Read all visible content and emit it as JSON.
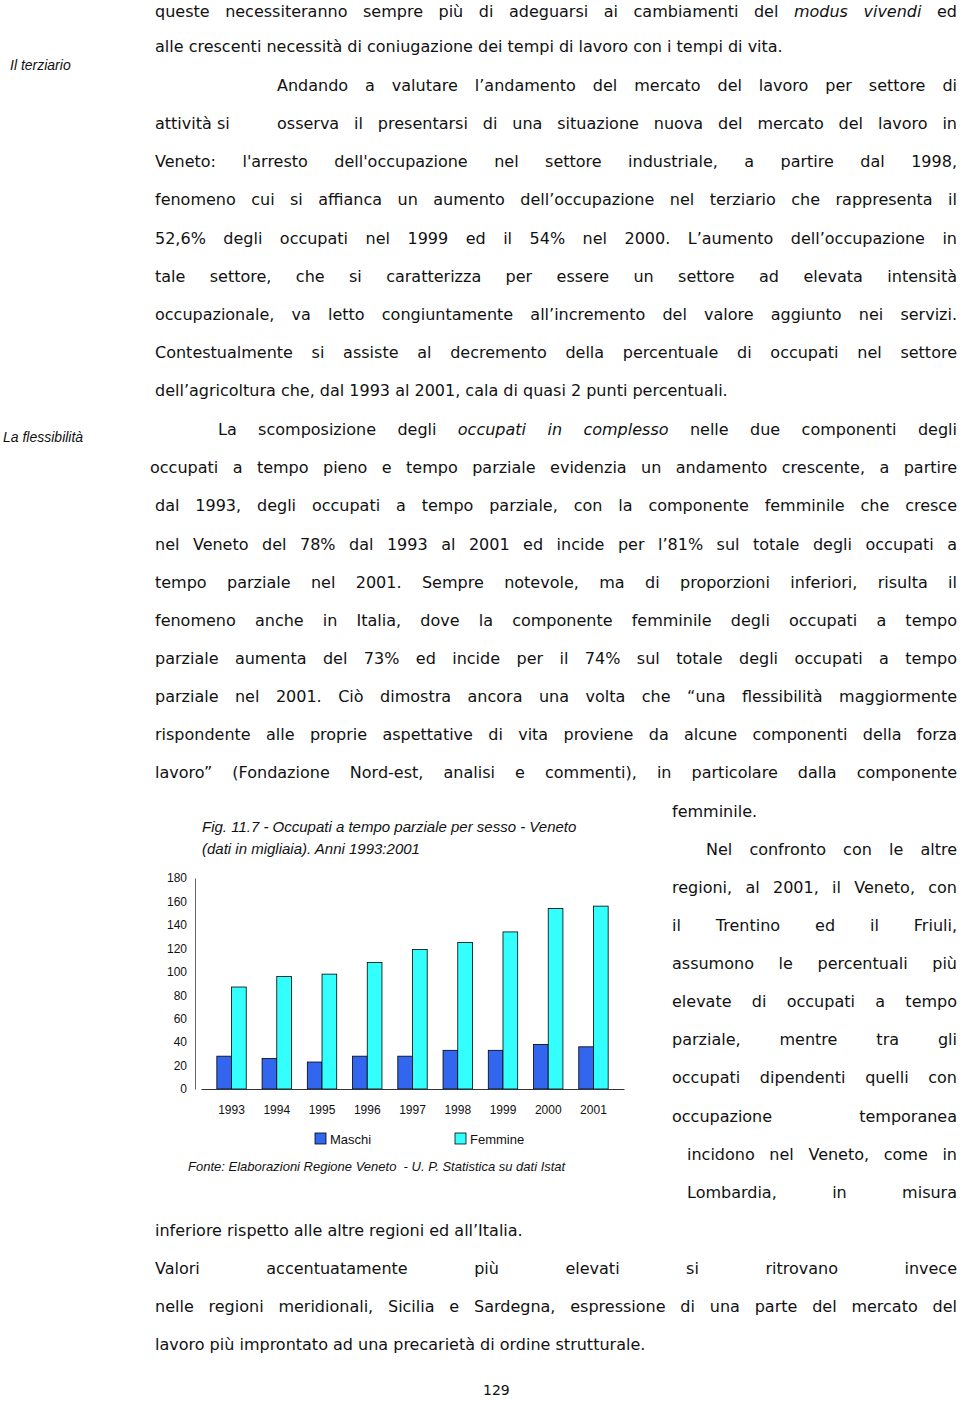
{
  "document": {
    "margin_notes": [
      "Il terziario",
      "La flessibilità"
    ],
    "lines": [
      [
        "queste necessiteranno sempre più di adeguarsi ai cambiamenti del ",
        "modus vivendi",
        " ed"
      ],
      [
        "alle crescenti necessità di coniugazione dei tempi di lavoro con i  tempi di vita."
      ],
      [
        "Andando a valutare l’andamento del mercato del lavoro per settore di"
      ],
      [
        "attività si"
      ],
      [
        "osserva il presentarsi di una situazione nuova del mercato del lavoro in"
      ],
      [
        "Veneto: l'arresto dell'occupazione nel settore industriale, a partire dal 1998,"
      ],
      [
        "fenomeno cui si affianca un aumento dell’occupazione nel terziario che rappresenta il"
      ],
      [
        "52,6% degli occupati nel  1999 ed il 54% nel 2000. L’aumento dell’occupazione in"
      ],
      [
        "tale settore, che si caratterizza per essere un settore ad elevata intensità"
      ],
      [
        "occupazionale, va letto congiuntamente all’incremento del valore aggiunto nei servizi."
      ],
      [
        "Contestualmente si assiste al decremento della percentuale di occupati nel settore"
      ],
      [
        "dell’agricoltura che, dal 1993 al 2001, cala di quasi 2 punti percentuali."
      ],
      [
        "La scomposizione degli ",
        "occupati in complesso",
        " nelle due componenti degli"
      ],
      [
        "occupati a tempo pieno e tempo parziale evidenzia un andamento crescente, a partire"
      ],
      [
        "dal 1993, degli occupati a tempo parziale, con la componente femminile che cresce"
      ],
      [
        "nel Veneto del 78% dal 1993 al 2001 ed incide per l’81% sul totale degli occupati a"
      ],
      [
        "tempo parziale nel 2001. Sempre notevole, ma di proporzioni inferiori, risulta il"
      ],
      [
        "fenomeno anche in Italia, dove la componente femminile degli occupati a tempo"
      ],
      [
        "parziale aumenta del 73% ed incide per il 74% sul totale degli occupati a tempo"
      ],
      [
        "parziale nel 2001. Ciò dimostra ancora una volta che “una flessibilità maggiormente"
      ],
      [
        "rispondente alle proprie aspettative di vita proviene da alcune componenti della forza"
      ],
      [
        "lavoro” (Fondazione Nord-est, analisi e commenti), in particolare dalla componente"
      ],
      [
        "femminile."
      ],
      [
        "Nel confronto con le altre"
      ],
      [
        "regioni, al 2001, il Veneto, con"
      ],
      [
        "il Trentino ed il Friuli,"
      ],
      [
        "assumono le percentuali più"
      ],
      [
        "elevate di occupati a tempo"
      ],
      [
        "parziale, mentre tra gli"
      ],
      [
        "occupati dipendenti quelli con"
      ],
      [
        "occupazione temporanea"
      ],
      [
        "incidono nel Veneto, come in"
      ],
      [
        "Lombardia, in misura"
      ],
      [
        "inferiore rispetto alle altre regioni ed all’Italia."
      ],
      [
        "Valori accentuatamente più elevati si ritrovano invece"
      ],
      [
        "nelle regioni meridionali, Sicilia e Sardegna, espressione di una parte del mercato del"
      ],
      [
        "lavoro più improntato ad una precarietà di ordine strutturale."
      ]
    ],
    "page_number": "129"
  },
  "chart_data": {
    "type": "bar",
    "title": "Fig. 11.7 - Occupati a tempo parziale per sesso - Veneto (dati in migliaia). Anni 1993:2001",
    "source": "Fonte: Elaborazioni Regione Veneto  - U. P. Statistica su dati Istat",
    "categories": [
      "1993",
      "1994",
      "1995",
      "1996",
      "1997",
      "1998",
      "1999",
      "2000",
      "2001"
    ],
    "series": [
      {
        "name": "Maschi",
        "color": "#3366ee",
        "values": [
          28,
          26,
          23,
          28,
          28,
          33,
          33,
          38,
          36
        ]
      },
      {
        "name": "Femmine",
        "color": "#33ffff",
        "values": [
          87,
          96,
          98,
          108,
          119,
          125,
          134,
          154,
          156
        ]
      }
    ],
    "ylim": [
      0,
      180
    ],
    "yticks": [
      0,
      20,
      40,
      60,
      80,
      100,
      120,
      140,
      160,
      180
    ],
    "grid": false,
    "legend": "bottom"
  }
}
